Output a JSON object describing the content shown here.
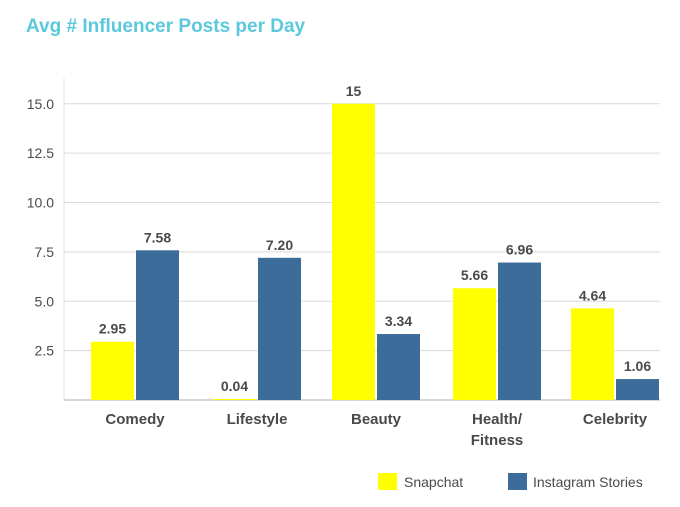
{
  "chart_data": {
    "type": "bar",
    "title": "Avg # Influencer Posts per Day",
    "categories": [
      "Comedy",
      "Lifestyle",
      "Beauty",
      "Health/\nFitness",
      "Celebrity"
    ],
    "series": [
      {
        "name": "Snapchat",
        "values": [
          2.95,
          0.04,
          15,
          5.66,
          4.64
        ],
        "labels": [
          "2.95",
          "0.04",
          "15",
          "5.66",
          "4.64"
        ],
        "color": "#ffff00"
      },
      {
        "name": "Instagram Stories",
        "values": [
          7.58,
          7.2,
          3.34,
          6.96,
          1.06
        ],
        "labels": [
          "7.58",
          "7.20",
          "3.34",
          "6.96",
          "1.06"
        ],
        "color": "#3c6c9a"
      }
    ],
    "y_ticks": [
      {
        "value": 2.5,
        "label": "2.5"
      },
      {
        "value": 5.0,
        "label": "5.0"
      },
      {
        "value": 7.5,
        "label": "7.5"
      },
      {
        "value": 10.0,
        "label": "10.0"
      },
      {
        "value": 12.5,
        "label": "12.5"
      },
      {
        "value": 15.0,
        "label": "15.0"
      }
    ],
    "ylim": [
      0,
      15.5
    ],
    "grid": true,
    "legend_position": "bottom-right",
    "title_color": "#5bc8dd",
    "text_color": "#4a4a4a",
    "grid_color": "#d9d9d9"
  }
}
